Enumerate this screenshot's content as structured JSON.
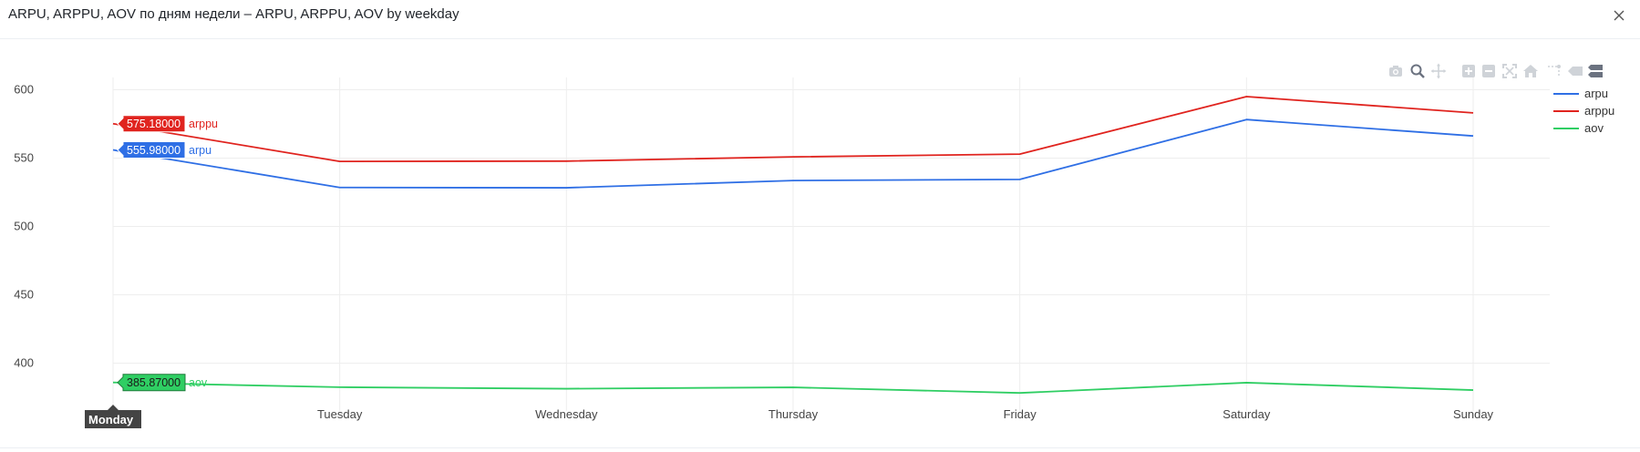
{
  "window": {
    "title": "ARPU, ARPPU, AOV по дням недели – ARPU, ARPPU, AOV by weekday"
  },
  "modebar": [
    "camera-icon",
    "zoom-icon",
    "pan-icon",
    "zoom-in-icon",
    "zoom-out-icon",
    "autoscale-icon",
    "reset-axes-icon",
    "spike-lines-icon",
    "hover-closest-icon",
    "hover-compare-icon"
  ],
  "hover": {
    "x_label": "Monday",
    "labels": [
      {
        "series": "arppu",
        "value": "575.18000"
      },
      {
        "series": "arpu",
        "value": "555.98000"
      },
      {
        "series": "aov",
        "value": "385.87000"
      }
    ]
  },
  "chart_data": {
    "type": "line",
    "title": "",
    "xlabel": "",
    "ylabel": "",
    "categories": [
      "Monday",
      "Tuesday",
      "Wednesday",
      "Thursday",
      "Friday",
      "Saturday",
      "Sunday"
    ],
    "yticks": [
      400,
      450,
      500,
      550,
      600
    ],
    "ylim": [
      365,
      609
    ],
    "grid": true,
    "legend_position": "top-right",
    "series": [
      {
        "name": "arpu",
        "color": "#2f6fe5",
        "values": [
          555.98,
          528.5,
          528.3,
          533.6,
          534.4,
          578.2,
          566.2
        ]
      },
      {
        "name": "arppu",
        "color": "#e0241f",
        "values": [
          575.18,
          547.6,
          547.8,
          550.9,
          552.9,
          595.0,
          583.1
        ]
      },
      {
        "name": "aov",
        "color": "#2fce63",
        "values": [
          385.87,
          382.4,
          381.3,
          382.3,
          378.2,
          385.7,
          380.3
        ]
      }
    ]
  }
}
